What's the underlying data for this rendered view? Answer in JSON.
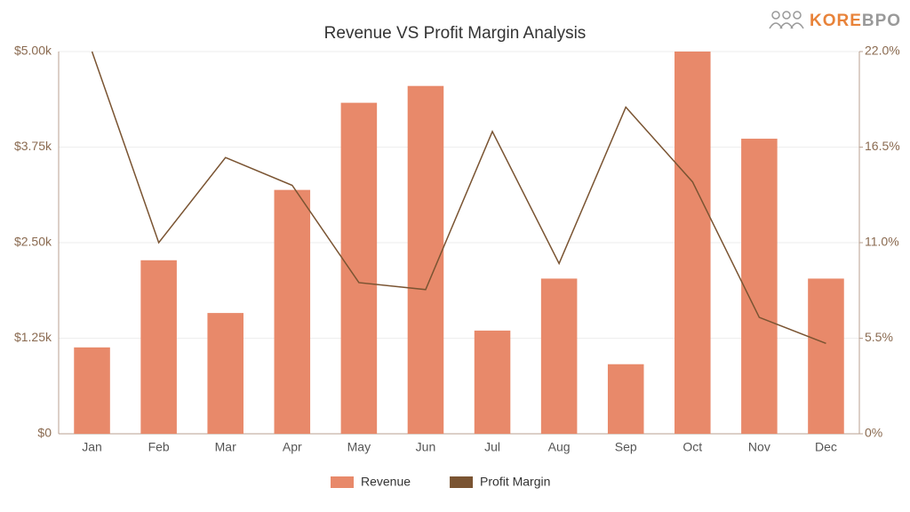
{
  "logo": {
    "accent": "KORE",
    "rest": "BPO"
  },
  "chart_data": {
    "type": "bar",
    "title": "Revenue VS Profit Margin Analysis",
    "categories": [
      "Jan",
      "Feb",
      "Mar",
      "Apr",
      "May",
      "Jun",
      "Jul",
      "Aug",
      "Sep",
      "Oct",
      "Nov",
      "Dec"
    ],
    "series": [
      {
        "name": "Revenue",
        "type": "bar",
        "color": "#e8896a",
        "values": [
          1130,
          2270,
          1580,
          3190,
          4330,
          4550,
          1350,
          2030,
          910,
          5000,
          3860,
          2030
        ]
      },
      {
        "name": "Profit Margin",
        "type": "line",
        "axis": "y2",
        "color": "#7a5432",
        "values": [
          22.0,
          11.0,
          15.9,
          14.3,
          8.7,
          8.3,
          17.4,
          9.8,
          18.8,
          14.5,
          6.7,
          5.2
        ]
      }
    ],
    "ylim": [
      0,
      5000
    ],
    "yticks": [
      {
        "value": 0,
        "label": "$0"
      },
      {
        "value": 1250,
        "label": "$1.25k"
      },
      {
        "value": 2500,
        "label": "$2.50k"
      },
      {
        "value": 3750,
        "label": "$3.75k"
      },
      {
        "value": 5000,
        "label": "$5.00k"
      }
    ],
    "y2lim": [
      0,
      22
    ],
    "y2ticks": [
      {
        "value": 0,
        "label": "0%"
      },
      {
        "value": 5.5,
        "label": "5.5%"
      },
      {
        "value": 11,
        "label": "11.0%"
      },
      {
        "value": 16.5,
        "label": "16.5%"
      },
      {
        "value": 22,
        "label": "22.0%"
      }
    ],
    "grid": true,
    "legend": "bottom"
  }
}
